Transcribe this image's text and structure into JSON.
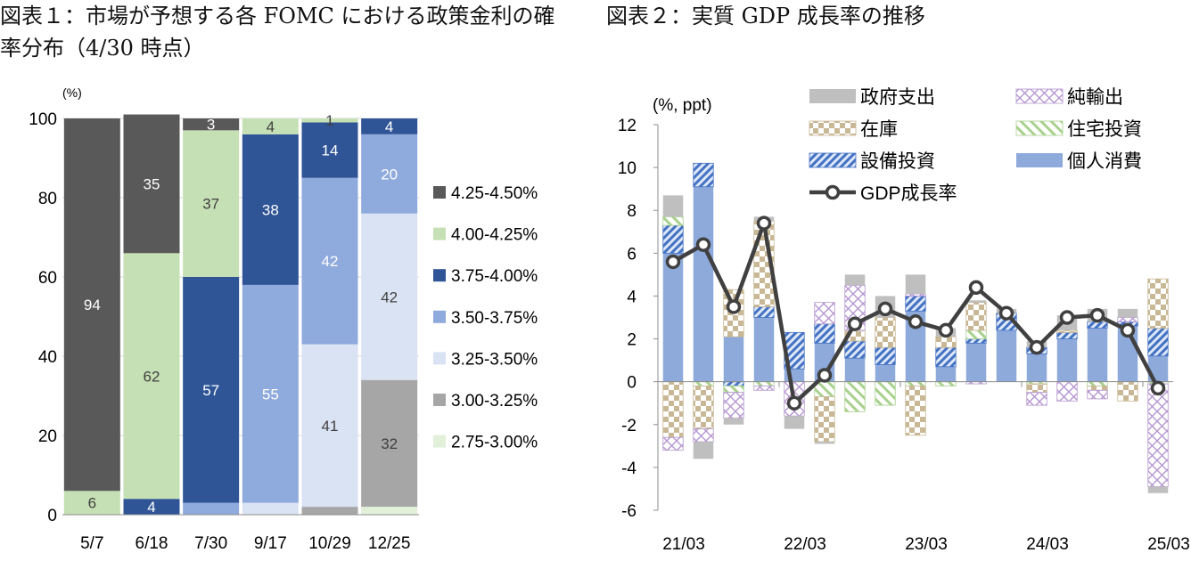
{
  "chart_data": [
    {
      "type": "bar",
      "stacked": true,
      "title": "図表１：市場が予想する各 FOMC における政策金利の確率分布（4/30 時点）",
      "ylabel": "(%)",
      "ylim": [
        0,
        100
      ],
      "yticks": [
        0,
        20,
        40,
        60,
        80,
        100
      ],
      "grid": true,
      "legend_position": "right",
      "categories": [
        "5/7",
        "6/18",
        "7/30",
        "9/17",
        "10/29",
        "12/25"
      ],
      "series": [
        {
          "name": "2.75-3.00%",
          "color": "#e2f0d9",
          "values": [
            0,
            0,
            0,
            0,
            0,
            2
          ],
          "labels": [
            "",
            "",
            "",
            "",
            "",
            ""
          ]
        },
        {
          "name": "3.00-3.25%",
          "color": "#a6a6a6",
          "values": [
            0,
            0,
            0,
            0,
            2,
            32
          ],
          "labels": [
            "",
            "",
            "",
            "",
            "",
            "32"
          ]
        },
        {
          "name": "3.25-3.50%",
          "color": "#dae3f3",
          "values": [
            0,
            0,
            0,
            3,
            41,
            42
          ],
          "labels": [
            "",
            "",
            "",
            "",
            "41",
            "42"
          ]
        },
        {
          "name": "3.50-3.75%",
          "color": "#8faadc",
          "values": [
            0,
            0,
            3,
            55,
            42,
            20
          ],
          "labels": [
            "",
            "",
            "",
            "55",
            "42",
            "20"
          ]
        },
        {
          "name": "3.75-4.00%",
          "color": "#2f5597",
          "values": [
            0,
            4,
            57,
            38,
            14,
            4
          ],
          "labels": [
            "",
            "4",
            "57",
            "38",
            "14",
            "4"
          ]
        },
        {
          "name": "4.00-4.25%",
          "color": "#c5e0b4",
          "values": [
            6,
            62,
            37,
            4,
            1,
            0
          ],
          "labels": [
            "6",
            "62",
            "37",
            "4",
            "1",
            ""
          ]
        },
        {
          "name": "4.25-4.50%",
          "color": "#595959",
          "values": [
            94,
            35,
            3,
            0,
            0,
            0
          ],
          "labels": [
            "94",
            "35",
            "3",
            "",
            "",
            ""
          ]
        }
      ]
    },
    {
      "type": "bar+line",
      "stacked": true,
      "title": "図表２：実質 GDP 成長率の推移",
      "ylabel": "(%, ppt)",
      "ylim": [
        -6,
        12
      ],
      "yticks": [
        -6,
        -4,
        -2,
        0,
        2,
        4,
        6,
        8,
        10,
        12
      ],
      "xtick_labels": [
        "21/03",
        "22/03",
        "23/03",
        "24/03",
        "25/03"
      ],
      "legend_position": "top",
      "categories": [
        "21Q1",
        "21Q2",
        "21Q3",
        "21Q4",
        "22Q1",
        "22Q2",
        "22Q3",
        "22Q4",
        "23Q1",
        "23Q2",
        "23Q3",
        "23Q4",
        "24Q1",
        "24Q2",
        "24Q3",
        "24Q4",
        "25Q1"
      ],
      "series": [
        {
          "name": "個人消費",
          "color": "#8eaadb",
          "pattern": "solid",
          "values": [
            6.0,
            9.1,
            2.1,
            3.0,
            0.6,
            1.8,
            1.1,
            0.8,
            3.3,
            0.7,
            1.8,
            2.4,
            1.3,
            2.0,
            2.5,
            2.6,
            1.2
          ]
        },
        {
          "name": "設備投資",
          "color": "#4472c4",
          "pattern": "dots",
          "values": [
            1.3,
            1.1,
            -0.2,
            0.5,
            1.7,
            0.9,
            0.8,
            0.8,
            0.7,
            0.9,
            0.2,
            0.8,
            0.3,
            0.3,
            0.3,
            0.2,
            1.3
          ]
        },
        {
          "name": "住宅投資",
          "color": "#a9d18e",
          "pattern": "diag",
          "values": [
            0.4,
            -0.2,
            -0.3,
            -0.2,
            0.0,
            -0.7,
            -1.4,
            -1.1,
            -0.2,
            -0.2,
            0.4,
            0.0,
            -0.1,
            0.0,
            -0.2,
            0.0,
            -0.1
          ]
        },
        {
          "name": "在庫",
          "color": "#c9b895",
          "pattern": "checker",
          "values": [
            -2.6,
            -2.0,
            2.2,
            4.0,
            0.0,
            -2.1,
            0.5,
            1.4,
            -2.3,
            0.5,
            1.3,
            0.0,
            -0.4,
            0.1,
            -0.2,
            -0.9,
            2.3
          ]
        },
        {
          "name": "純輸出",
          "color": "#b597d1",
          "pattern": "cross",
          "values": [
            -0.6,
            -0.6,
            -1.2,
            -0.2,
            -1.6,
            1.0,
            2.1,
            0.0,
            0.1,
            0.0,
            -0.1,
            0.0,
            -0.6,
            -0.9,
            -0.4,
            0.2,
            -4.8
          ]
        },
        {
          "name": "政府支出",
          "color": "#bfbfbf",
          "pattern": "solid",
          "values": [
            1.0,
            -0.8,
            -0.3,
            0.2,
            -0.6,
            -0.1,
            0.5,
            1.0,
            0.9,
            0.4,
            0.1,
            0.2,
            0.3,
            0.7,
            0.6,
            0.4,
            -0.3
          ]
        },
        {
          "name": "GDP成長率",
          "type": "line",
          "color": "#404040",
          "values": [
            5.6,
            6.4,
            3.5,
            7.4,
            -1.0,
            0.3,
            2.7,
            3.4,
            2.8,
            2.4,
            4.4,
            3.2,
            1.6,
            3.0,
            3.1,
            2.4,
            -0.3
          ]
        }
      ]
    }
  ]
}
